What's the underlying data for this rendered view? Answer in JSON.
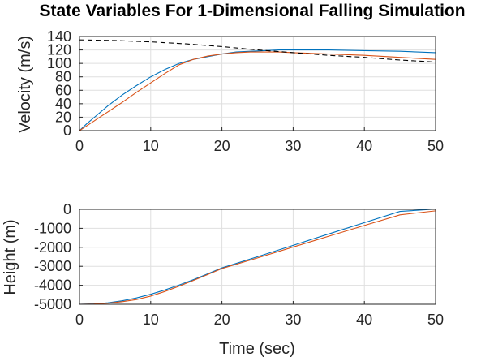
{
  "chart_data": [
    {
      "type": "line",
      "title": "State Variables For 1-Dimensional Falling Simulation",
      "xlabel": "",
      "ylabel": "Velocity (m/s)",
      "xlim": [
        0,
        50
      ],
      "ylim": [
        0,
        140
      ],
      "xticks": [
        "0",
        "10",
        "20",
        "30",
        "40",
        "50"
      ],
      "yticks": [
        "0",
        "20",
        "40",
        "60",
        "80",
        "100",
        "120",
        "140"
      ],
      "grid": true,
      "series": [
        {
          "color": "#0072BD",
          "dash": "solid",
          "x": [
            0,
            1,
            2,
            3,
            4,
            5,
            6,
            8,
            10,
            12,
            14,
            16,
            18,
            20,
            22,
            24,
            26,
            28,
            30,
            35,
            40,
            45,
            50
          ],
          "y": [
            0,
            10,
            19,
            28,
            37,
            45,
            53,
            67,
            80,
            91,
            100,
            106,
            110,
            114,
            117,
            118,
            119,
            120,
            120,
            120,
            119,
            118,
            116
          ]
        },
        {
          "color": "#D95319",
          "dash": "solid",
          "x": [
            0,
            1,
            2,
            3,
            4,
            5,
            6,
            8,
            10,
            12,
            14,
            16,
            18,
            20,
            22,
            24,
            26,
            28,
            30,
            35,
            40,
            45,
            50
          ],
          "y": [
            0,
            7,
            14,
            21,
            28,
            35,
            42,
            57,
            71,
            85,
            98,
            106,
            111,
            114,
            116,
            117,
            117,
            117,
            116,
            114,
            112,
            109,
            106
          ]
        },
        {
          "color": "#000000",
          "dash": "dashed",
          "x": [
            0,
            5,
            10,
            15,
            20,
            25,
            30,
            35,
            40,
            45,
            50
          ],
          "y": [
            135,
            134,
            132,
            129,
            125,
            120,
            116,
            112,
            109,
            105,
            102
          ]
        }
      ]
    },
    {
      "type": "line",
      "title": "",
      "xlabel": "Time (sec)",
      "ylabel": "Height (m)",
      "xlim": [
        0,
        50
      ],
      "ylim": [
        -5000,
        0
      ],
      "xticks": [
        "0",
        "10",
        "20",
        "30",
        "40",
        "50"
      ],
      "yticks": [
        "-5000",
        "-4000",
        "-3000",
        "-2000",
        "-1000",
        "0"
      ],
      "grid": true,
      "series": [
        {
          "color": "#0072BD",
          "dash": "solid",
          "x": [
            0,
            2,
            4,
            6,
            8,
            10,
            12,
            14,
            16,
            18,
            20,
            25,
            30,
            35,
            40,
            45,
            49.5,
            50
          ],
          "y": [
            -5000,
            -4982,
            -4920,
            -4815,
            -4665,
            -4475,
            -4245,
            -3985,
            -3700,
            -3400,
            -3085,
            -2495,
            -1895,
            -1295,
            -700,
            -110,
            0,
            0
          ]
        },
        {
          "color": "#D95319",
          "dash": "solid",
          "x": [
            0,
            2,
            4,
            6,
            8,
            10,
            12,
            14,
            16,
            18,
            20,
            25,
            30,
            35,
            40,
            45,
            50
          ],
          "y": [
            -5000,
            -4986,
            -4942,
            -4865,
            -4750,
            -4570,
            -4325,
            -4045,
            -3745,
            -3435,
            -3120,
            -2560,
            -1985,
            -1415,
            -850,
            -290,
            -80
          ]
        }
      ]
    }
  ]
}
